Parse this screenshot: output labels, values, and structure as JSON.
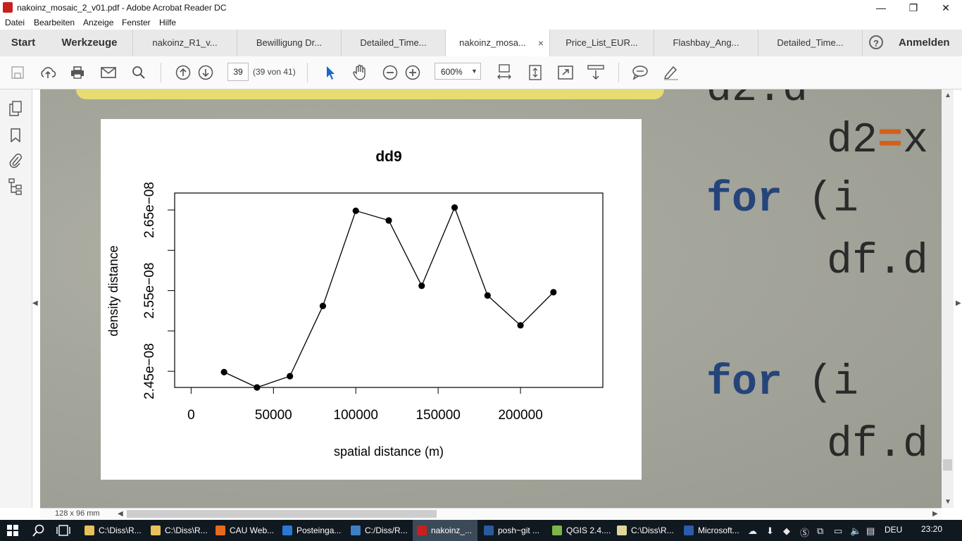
{
  "window": {
    "title": "nakoinz_mosaic_2_v01.pdf - Adobe Acrobat Reader DC",
    "minimize": "—",
    "maximize": "❐",
    "close": "✕"
  },
  "menu": [
    "Datei",
    "Bearbeiten",
    "Anzeige",
    "Fenster",
    "Hilfe"
  ],
  "tabs": {
    "home": "Start",
    "tools": "Werkzeuge",
    "documents": [
      {
        "label": "nakoinz_R1_v..."
      },
      {
        "label": "Bewilligung Dr..."
      },
      {
        "label": "Detailed_Time..."
      },
      {
        "label": "nakoinz_mosa...",
        "active": true,
        "close": "×"
      },
      {
        "label": "Price_List_EUR..."
      },
      {
        "label": "Flashbay_Ang..."
      },
      {
        "label": "Detailed_Time..."
      }
    ],
    "help": "?",
    "signin": "Anmelden"
  },
  "toolbar": {
    "page_number": "39",
    "page_count": "(39 von 41)",
    "zoom": "600%",
    "icons": [
      "save-icon",
      "upload-icon",
      "print-icon",
      "email-icon",
      "search-icon",
      "page-up-icon",
      "page-down-icon",
      "select-cursor-icon",
      "hand-icon",
      "zoom-out-icon",
      "zoom-in-icon",
      "fit-width-icon",
      "fit-page-icon",
      "fullscreen-icon",
      "scroll-mode-icon",
      "comment-icon",
      "highlight-pen-icon"
    ]
  },
  "leftnav": {
    "icons": [
      "pages-icon",
      "bookmark-icon",
      "attachment-icon",
      "layers-icon"
    ]
  },
  "document": {
    "code_lines": [
      {
        "text": "d2=x",
        "parts": [
          "d2",
          "=",
          "x"
        ]
      },
      {
        "text": "for (i",
        "kw": "for",
        "rest": " (i"
      },
      {
        "text": "df.d"
      },
      {
        "text": "for (i",
        "kw": "for",
        "rest": " (i"
      },
      {
        "text": "df.d"
      }
    ]
  },
  "status": {
    "page_size": "128 x 96 mm"
  },
  "chart_data": {
    "type": "line",
    "title": "dd9",
    "xlabel": "spatial distance (m)",
    "ylabel": "density distance",
    "xlim": [
      -10000,
      250000
    ],
    "ylim": [
      2.43e-08,
      2.671e-08
    ],
    "xticks": [
      0,
      50000,
      100000,
      150000,
      200000
    ],
    "xtick_labels": [
      "0",
      "50000",
      "100000",
      "150000",
      "200000"
    ],
    "yticks": [
      2.45e-08,
      2.5e-08,
      2.55e-08,
      2.6e-08,
      2.65e-08
    ],
    "ytick_labels": [
      "2.45e−08",
      "",
      "2.55e−08",
      "",
      "2.65e−08"
    ],
    "grid": false,
    "markers": true,
    "x": [
      20000,
      40000,
      60000,
      80000,
      100000,
      120000,
      140000,
      160000,
      180000,
      200000,
      220000
    ],
    "y": [
      2.449e-08,
      2.43e-08,
      2.444e-08,
      2.531e-08,
      2.649e-08,
      2.637e-08,
      2.556e-08,
      2.653e-08,
      2.544e-08,
      2.507e-08,
      2.548e-08
    ]
  },
  "taskbar": {
    "items": [
      {
        "label": "C:\\Diss\\R...",
        "color": "#e8c15a"
      },
      {
        "label": "C:\\Diss\\R...",
        "color": "#e8c15a"
      },
      {
        "label": "CAU Web...",
        "color": "#e86a1f"
      },
      {
        "label": "Posteinga...",
        "color": "#2b78d4"
      },
      {
        "label": "C:/Diss/R...",
        "color": "#3f7fc6"
      },
      {
        "label": "nakoinz_...",
        "color": "#c8201e",
        "active": true
      },
      {
        "label": "posh~git ...",
        "color": "#2a5aa0"
      },
      {
        "label": "QGIS 2.4....",
        "color": "#7ab648"
      },
      {
        "label": "C:\\Diss\\R...",
        "color": "#dfd79a"
      },
      {
        "label": "Microsoft...",
        "color": "#2b5cad"
      }
    ],
    "language": "DEU",
    "clock": "23:20"
  }
}
